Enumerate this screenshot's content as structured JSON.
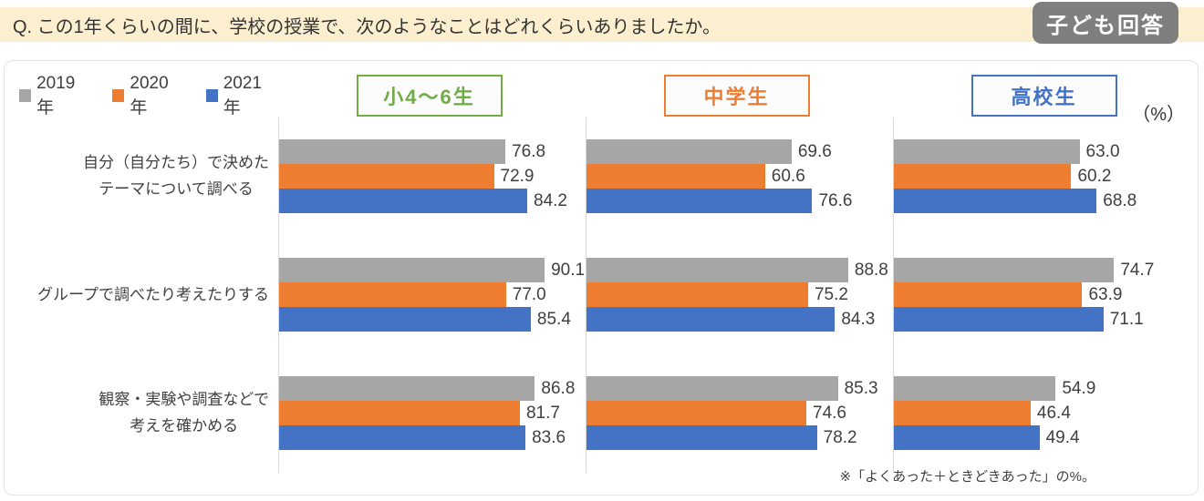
{
  "header": {
    "question": "Q. この1年くらいの間に、学校の授業で、次のようなことはどれくらいありましたか。",
    "badge": "子ども回答"
  },
  "colors": {
    "question_band": "#FBEFCF",
    "badge": "#7F7F7F",
    "axis_line": "#D9D9D9",
    "value_text": "#3F3F3F"
  },
  "chart_data": {
    "type": "bar",
    "orientation": "horizontal",
    "unit": "（%）",
    "xlim": [
      0,
      104
    ],
    "legend_position": "top-left",
    "series_years": [
      {
        "name": "2019年",
        "color": "#A6A6A6"
      },
      {
        "name": "2020年",
        "color": "#ED7D31"
      },
      {
        "name": "2021年",
        "color": "#4472C4"
      }
    ],
    "panels": [
      {
        "name": "小4～6生",
        "color": "#70AD47"
      },
      {
        "name": "中学生",
        "color": "#ED7D31"
      },
      {
        "name": "高校生",
        "color": "#4472C4"
      }
    ],
    "categories": [
      "自分（自分たち）で決めた\nテーマについて調べる",
      "グループで調べたり考えたりする",
      "観察・実験や調査などで\n考えを確かめる"
    ],
    "values": [
      [
        [
          76.8,
          72.9,
          84.2
        ],
        [
          69.6,
          60.6,
          76.6
        ],
        [
          63.0,
          60.2,
          68.8
        ]
      ],
      [
        [
          90.1,
          77.0,
          85.4
        ],
        [
          88.8,
          75.2,
          84.3
        ],
        [
          74.7,
          63.9,
          71.1
        ]
      ],
      [
        [
          86.8,
          81.7,
          83.6
        ],
        [
          85.3,
          74.6,
          78.2
        ],
        [
          54.9,
          46.4,
          49.4
        ]
      ]
    ]
  },
  "footnote": "※「よくあった＋ときどきあった」の%。"
}
